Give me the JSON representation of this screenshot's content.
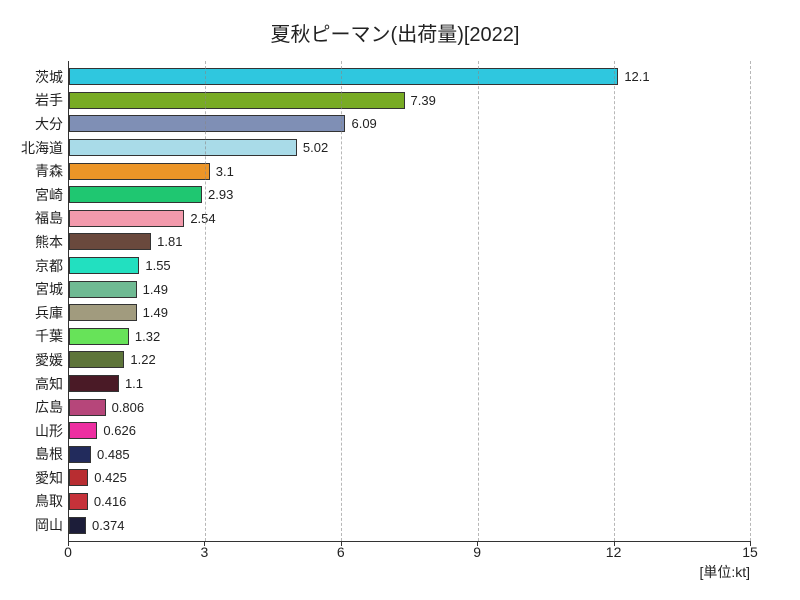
{
  "chart": {
    "type": "bar-horizontal",
    "title": "夏秋ピーマン(出荷量)[2022]",
    "unit_label": "[単位:kt]",
    "background_color": "#ffffff",
    "grid_color": "#888888",
    "axis_color": "#333333",
    "title_fontsize": 20,
    "label_fontsize": 14,
    "value_fontsize": 13,
    "xlim": [
      0,
      15
    ],
    "xtick_step": 3,
    "xticks": [
      0,
      3,
      6,
      9,
      12,
      15
    ],
    "bar_border_color": "#333333",
    "bars": [
      {
        "label": "茨城",
        "value": 12.1,
        "value_text": "12.1",
        "color": "#2fc7df"
      },
      {
        "label": "岩手",
        "value": 7.39,
        "value_text": "7.39",
        "color": "#78ab24"
      },
      {
        "label": "大分",
        "value": 6.09,
        "value_text": "6.09",
        "color": "#7f8fb5"
      },
      {
        "label": "北海道",
        "value": 5.02,
        "value_text": "5.02",
        "color": "#a9dbe8"
      },
      {
        "label": "青森",
        "value": 3.1,
        "value_text": "3.1",
        "color": "#ec9527"
      },
      {
        "label": "宮崎",
        "value": 2.93,
        "value_text": "2.93",
        "color": "#1fc771"
      },
      {
        "label": "福島",
        "value": 2.54,
        "value_text": "2.54",
        "color": "#f39aac"
      },
      {
        "label": "熊本",
        "value": 1.81,
        "value_text": "1.81",
        "color": "#6a493d"
      },
      {
        "label": "京都",
        "value": 1.55,
        "value_text": "1.55",
        "color": "#22e0c0"
      },
      {
        "label": "宮城",
        "value": 1.49,
        "value_text": "1.49",
        "color": "#6fba93"
      },
      {
        "label": "兵庫",
        "value": 1.49,
        "value_text": "1.49",
        "color": "#a19b7e"
      },
      {
        "label": "千葉",
        "value": 1.32,
        "value_text": "1.32",
        "color": "#67e359"
      },
      {
        "label": "愛媛",
        "value": 1.22,
        "value_text": "1.22",
        "color": "#5e753a"
      },
      {
        "label": "高知",
        "value": 1.1,
        "value_text": "1.1",
        "color": "#4a1a26"
      },
      {
        "label": "広島",
        "value": 0.806,
        "value_text": "0.806",
        "color": "#b6467a"
      },
      {
        "label": "山形",
        "value": 0.626,
        "value_text": "0.626",
        "color": "#ed2ea1"
      },
      {
        "label": "島根",
        "value": 0.485,
        "value_text": "0.485",
        "color": "#222b5c"
      },
      {
        "label": "愛知",
        "value": 0.425,
        "value_text": "0.425",
        "color": "#b82d31"
      },
      {
        "label": "鳥取",
        "value": 0.416,
        "value_text": "0.416",
        "color": "#c6323a"
      },
      {
        "label": "岡山",
        "value": 0.374,
        "value_text": "0.374",
        "color": "#1c1d39"
      }
    ]
  }
}
